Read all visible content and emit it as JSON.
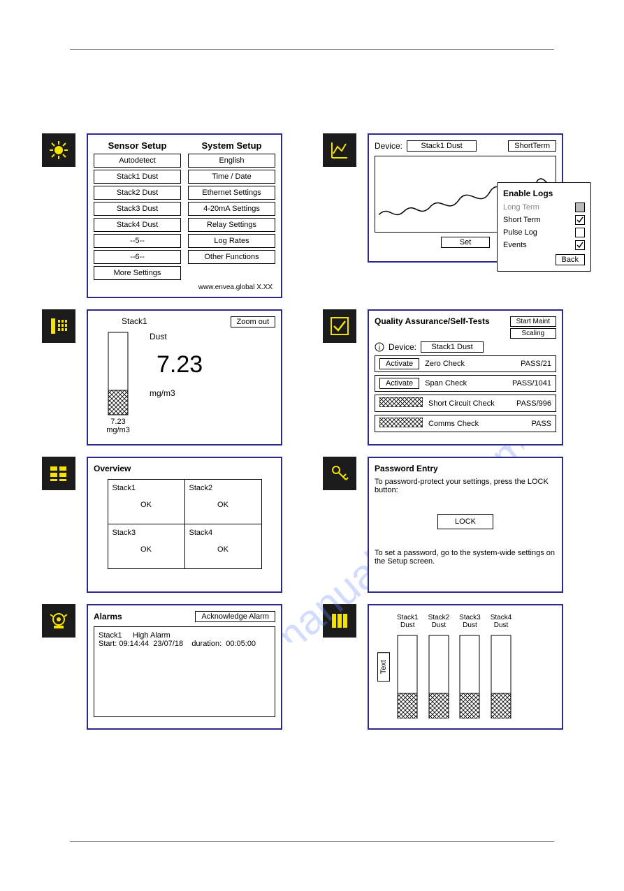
{
  "colors": {
    "panel_border": "#2a2a8a",
    "icon_bg": "#1b1b1b",
    "icon_fg": "#f6e200",
    "watermark": "#6a8cff"
  },
  "watermark": "manualshive.com",
  "setup": {
    "sensor_header": "Sensor Setup",
    "system_header": "System Setup",
    "sensor_buttons": [
      "Autodetect",
      "Stack1 Dust",
      "Stack2 Dust",
      "Stack3 Dust",
      "Stack4 Dust",
      "--5--",
      "--6--",
      "More Settings"
    ],
    "system_buttons": [
      "English",
      "Time / Date",
      "Ethernet Settings",
      "4-20mA Settings",
      "Relay Settings",
      "Log Rates",
      "Other Functions"
    ],
    "footer": "www.envea.global  X.XX"
  },
  "chart": {
    "device_label": "Device:",
    "device_value": "Stack1 Dust",
    "term_btn": "ShortTerm",
    "set_btn": "Set",
    "enable_header": "Enable Logs",
    "options": [
      {
        "label": "Long Term",
        "checked": false,
        "shaded": true
      },
      {
        "label": "Short Term",
        "checked": true,
        "shaded": false
      },
      {
        "label": "Pulse Log",
        "checked": false,
        "shaded": false
      },
      {
        "label": "Events",
        "checked": true,
        "shaded": false
      }
    ],
    "back_btn": "Back"
  },
  "gauge": {
    "stack": "Stack1",
    "type": "Dust",
    "value": "7.23",
    "unit": "mg/m3",
    "bar_label": "7.23",
    "bar_unit": "mg/m3",
    "fill_pct": 30,
    "zoom_btn": "Zoom out"
  },
  "qa": {
    "title": "Quality Assurance/Self-Tests",
    "start_maint": "Start Maint",
    "scaling": "Scaling",
    "device_label": "Device:",
    "device_value": "Stack1 Dust",
    "activate": "Activate",
    "tests": [
      {
        "name": "Zero Check",
        "result": "PASS/21",
        "shaded": false
      },
      {
        "name": "Span Check",
        "result": "PASS/1041",
        "shaded": false
      },
      {
        "name": "Short Circuit Check",
        "result": "PASS/996",
        "shaded": true
      },
      {
        "name": "Comms Check",
        "result": "PASS",
        "shaded": true
      }
    ]
  },
  "overview": {
    "title": "Overview",
    "cells": [
      {
        "name": "Stack1",
        "status": "OK"
      },
      {
        "name": "Stack2",
        "status": "OK"
      },
      {
        "name": "Stack3",
        "status": "OK"
      },
      {
        "name": "Stack4",
        "status": "OK"
      }
    ]
  },
  "password": {
    "title": "Password Entry",
    "line1": "To password-protect your settings, press the LOCK button:",
    "lock_btn": "LOCK",
    "line2": "To set a password, go to the system-wide settings on the Setup screen."
  },
  "alarms": {
    "title": "Alarms",
    "ack_btn": "Acknowledge Alarm",
    "entry_line1": "Stack1     High Alarm",
    "entry_line2": "Start: 09:14:44  23/07/18    duration:  00:05:00"
  },
  "multi": {
    "text_btn": "Text",
    "bars": [
      {
        "label": "Stack1 Dust",
        "fill_pct": 30
      },
      {
        "label": "Stack2 Dust",
        "fill_pct": 30
      },
      {
        "label": "Stack3 Dust",
        "fill_pct": 30
      },
      {
        "label": "Stack4 Dust",
        "fill_pct": 30
      }
    ]
  }
}
